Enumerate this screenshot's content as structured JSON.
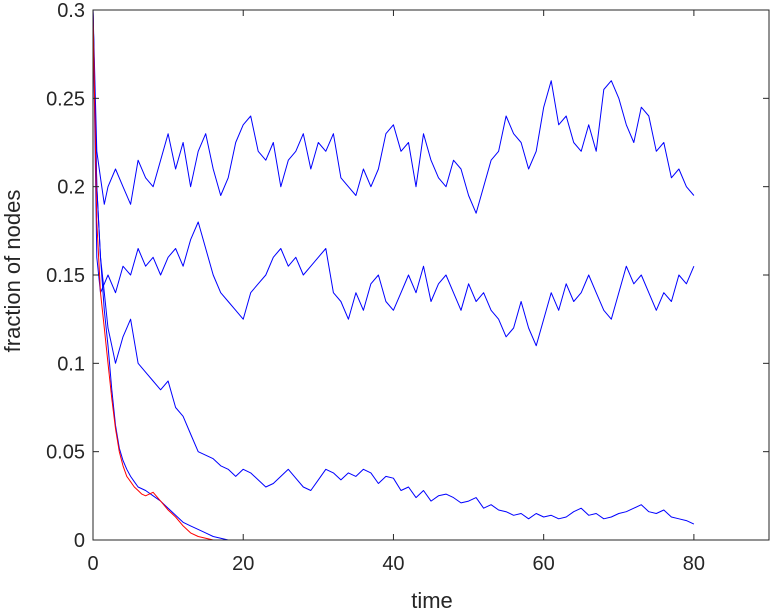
{
  "chart_data": {
    "type": "line",
    "title": "",
    "xlabel": "time",
    "ylabel": "fraction of nodes",
    "xlim": [
      0,
      90
    ],
    "ylim": [
      0,
      0.3
    ],
    "xticks": [
      0,
      20,
      40,
      60,
      80
    ],
    "xtick_labels": [
      "0",
      "20",
      "40",
      "60",
      "80"
    ],
    "yticks": [
      0,
      0.05,
      0.1,
      0.15,
      0.2,
      0.25,
      0.3
    ],
    "ytick_labels": [
      "0",
      "0.05",
      "0.1",
      "0.15",
      "0.2",
      "0.25",
      "0.3"
    ],
    "grid": false,
    "legend": false,
    "colors": {
      "blue": "#0000ff",
      "red": "#ff0000",
      "axis": "#262626"
    },
    "series": [
      {
        "color": "#0000ff",
        "x": [
          0,
          0.5,
          1,
          1.5,
          2,
          3,
          4,
          5,
          6,
          7,
          8,
          9,
          10,
          11,
          12,
          13,
          14,
          15,
          16,
          17,
          18,
          19,
          20,
          21,
          22,
          23,
          24,
          25,
          26,
          27,
          28,
          29,
          30,
          31,
          32,
          33,
          34,
          35,
          36,
          37,
          38,
          39,
          40,
          41,
          42,
          43,
          44,
          45,
          46,
          47,
          48,
          49,
          50,
          51,
          52,
          53,
          54,
          55,
          56,
          57,
          58,
          59,
          60,
          61,
          62,
          63,
          64,
          65,
          66,
          67,
          68,
          69,
          70,
          71,
          72,
          73,
          74,
          75,
          76,
          77,
          78,
          79,
          80
        ],
        "values": [
          0.3,
          0.22,
          0.205,
          0.19,
          0.2,
          0.21,
          0.2,
          0.19,
          0.215,
          0.205,
          0.2,
          0.215,
          0.23,
          0.21,
          0.225,
          0.2,
          0.22,
          0.23,
          0.21,
          0.195,
          0.205,
          0.225,
          0.235,
          0.24,
          0.22,
          0.215,
          0.225,
          0.2,
          0.215,
          0.22,
          0.23,
          0.21,
          0.225,
          0.22,
          0.23,
          0.205,
          0.2,
          0.195,
          0.21,
          0.2,
          0.21,
          0.23,
          0.235,
          0.22,
          0.225,
          0.2,
          0.23,
          0.215,
          0.205,
          0.2,
          0.215,
          0.21,
          0.195,
          0.185,
          0.2,
          0.215,
          0.22,
          0.24,
          0.23,
          0.225,
          0.21,
          0.22,
          0.245,
          0.26,
          0.235,
          0.24,
          0.225,
          0.22,
          0.235,
          0.22,
          0.255,
          0.26,
          0.25,
          0.235,
          0.225,
          0.245,
          0.24,
          0.22,
          0.225,
          0.205,
          0.21,
          0.2,
          0.195
        ]
      },
      {
        "color": "#0000ff",
        "x": [
          0,
          0.5,
          1,
          1.5,
          2,
          3,
          4,
          5,
          6,
          7,
          8,
          9,
          10,
          11,
          12,
          13,
          14,
          15,
          16,
          17,
          18,
          19,
          20,
          21,
          22,
          23,
          24,
          25,
          26,
          27,
          28,
          29,
          30,
          31,
          32,
          33,
          34,
          35,
          36,
          37,
          38,
          39,
          40,
          41,
          42,
          43,
          44,
          45,
          46,
          47,
          48,
          49,
          50,
          51,
          52,
          53,
          54,
          55,
          56,
          57,
          58,
          59,
          60,
          61,
          62,
          63,
          64,
          65,
          66,
          67,
          68,
          69,
          70,
          71,
          72,
          73,
          74,
          75,
          76,
          77,
          78,
          79,
          80
        ],
        "values": [
          0.3,
          0.16,
          0.14,
          0.145,
          0.15,
          0.14,
          0.155,
          0.15,
          0.165,
          0.155,
          0.16,
          0.15,
          0.16,
          0.165,
          0.155,
          0.17,
          0.18,
          0.165,
          0.15,
          0.14,
          0.135,
          0.13,
          0.125,
          0.14,
          0.145,
          0.15,
          0.16,
          0.165,
          0.155,
          0.16,
          0.15,
          0.155,
          0.16,
          0.165,
          0.14,
          0.135,
          0.125,
          0.14,
          0.13,
          0.145,
          0.15,
          0.135,
          0.13,
          0.14,
          0.15,
          0.14,
          0.155,
          0.135,
          0.145,
          0.15,
          0.14,
          0.13,
          0.145,
          0.135,
          0.14,
          0.13,
          0.125,
          0.115,
          0.12,
          0.135,
          0.12,
          0.11,
          0.125,
          0.14,
          0.13,
          0.145,
          0.135,
          0.14,
          0.15,
          0.14,
          0.13,
          0.125,
          0.14,
          0.155,
          0.145,
          0.15,
          0.14,
          0.13,
          0.14,
          0.135,
          0.15,
          0.145,
          0.155
        ]
      },
      {
        "color": "#0000ff",
        "x": [
          0,
          0.5,
          1,
          1.5,
          2,
          2.5,
          3,
          4,
          5,
          6,
          7,
          8,
          9,
          10,
          11,
          12,
          13,
          14,
          15,
          16,
          17,
          18,
          19,
          20,
          21,
          22,
          23,
          24,
          25,
          26,
          27,
          28,
          29,
          30,
          31,
          32,
          33,
          34,
          35,
          36,
          37,
          38,
          39,
          40,
          41,
          42,
          43,
          44,
          45,
          46,
          47,
          48,
          49,
          50,
          51,
          52,
          53,
          54,
          55,
          56,
          57,
          58,
          59,
          60,
          61,
          62,
          63,
          64,
          65,
          66,
          67,
          68,
          69,
          70,
          71,
          72,
          73,
          74,
          75,
          76,
          77,
          78,
          79,
          80
        ],
        "values": [
          0.3,
          0.2,
          0.16,
          0.14,
          0.12,
          0.11,
          0.1,
          0.115,
          0.125,
          0.1,
          0.095,
          0.09,
          0.085,
          0.09,
          0.075,
          0.07,
          0.06,
          0.05,
          0.048,
          0.046,
          0.042,
          0.04,
          0.036,
          0.04,
          0.038,
          0.034,
          0.03,
          0.032,
          0.036,
          0.04,
          0.035,
          0.03,
          0.028,
          0.034,
          0.04,
          0.038,
          0.034,
          0.038,
          0.036,
          0.04,
          0.038,
          0.032,
          0.036,
          0.035,
          0.028,
          0.03,
          0.024,
          0.028,
          0.022,
          0.025,
          0.026,
          0.024,
          0.021,
          0.022,
          0.024,
          0.018,
          0.02,
          0.017,
          0.016,
          0.014,
          0.015,
          0.012,
          0.015,
          0.013,
          0.014,
          0.012,
          0.013,
          0.016,
          0.018,
          0.014,
          0.015,
          0.012,
          0.013,
          0.015,
          0.016,
          0.018,
          0.02,
          0.016,
          0.015,
          0.017,
          0.013,
          0.012,
          0.011,
          0.009
        ]
      },
      {
        "color": "#0000ff",
        "x": [
          0,
          0.5,
          1,
          1.5,
          2,
          2.5,
          3,
          3.5,
          4,
          4.5,
          5,
          5.5,
          6,
          7,
          8,
          9,
          10,
          11,
          12,
          13,
          14,
          15,
          16,
          17,
          18,
          20,
          30,
          40,
          50,
          60,
          70,
          80
        ],
        "values": [
          0.3,
          0.2,
          0.16,
          0.13,
          0.11,
          0.085,
          0.065,
          0.052,
          0.045,
          0.04,
          0.036,
          0.033,
          0.03,
          0.028,
          0.025,
          0.022,
          0.018,
          0.014,
          0.01,
          0.008,
          0.006,
          0.004,
          0.002,
          0.001,
          0,
          0,
          0,
          0,
          0,
          0,
          0,
          0
        ]
      },
      {
        "color": "#ff0000",
        "x": [
          0,
          0.5,
          1,
          1.5,
          2,
          2.5,
          3,
          3.5,
          4,
          4.5,
          5,
          5.5,
          6,
          6.5,
          7,
          8,
          9,
          10,
          11,
          12,
          13,
          14,
          15,
          16,
          17,
          18
        ],
        "values": [
          0.3,
          0.18,
          0.14,
          0.12,
          0.1,
          0.08,
          0.063,
          0.05,
          0.042,
          0.036,
          0.033,
          0.03,
          0.028,
          0.026,
          0.025,
          0.027,
          0.022,
          0.017,
          0.013,
          0.008,
          0.004,
          0.002,
          0.001,
          0,
          0,
          0
        ]
      }
    ]
  }
}
